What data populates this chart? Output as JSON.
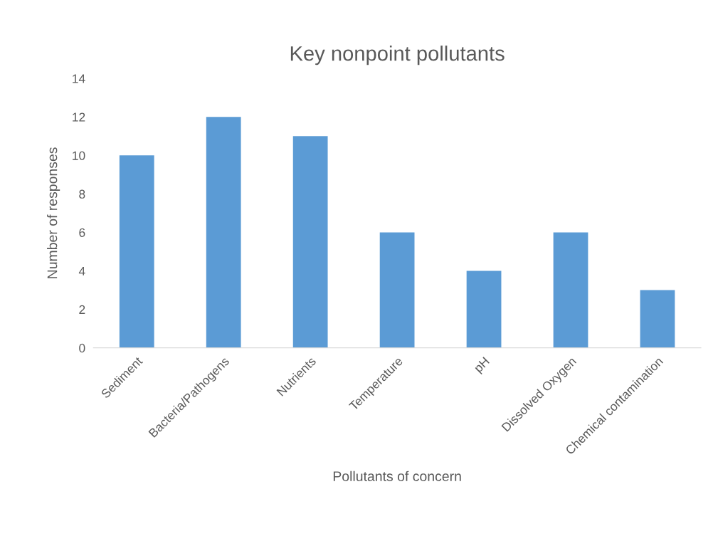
{
  "chart_data": {
    "type": "bar",
    "title": "Key nonpoint pollutants",
    "xlabel": "Pollutants of concern",
    "ylabel": "Number of responses",
    "categories": [
      "Sediment",
      "Bacteria/Pathogens",
      "Nutrients",
      "Temperature",
      "pH",
      "Dissolved Oxygen",
      "Chemical contamination"
    ],
    "values": [
      10,
      12,
      11,
      6,
      4,
      6,
      3
    ],
    "color": "#5b9bd5",
    "ylim": [
      0,
      14
    ],
    "yticks": [
      0,
      2,
      4,
      6,
      8,
      10,
      12,
      14
    ],
    "grid": false
  }
}
